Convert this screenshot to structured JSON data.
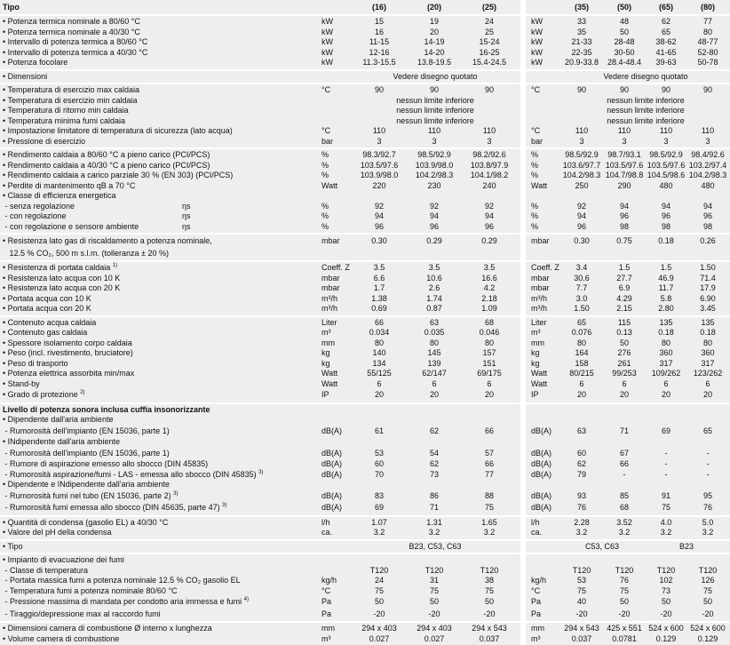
{
  "groups": [
    {
      "rows": [
        {
          "hdr": true,
          "l": "Tipo",
          "v": [
            "(16)",
            "(20)",
            "(25)"
          ],
          "rv": [
            "(35)",
            "(50)",
            "(65)",
            "(80)"
          ]
        }
      ]
    },
    {
      "rows": [
        {
          "l": "• Potenza termica nominale a 80/60 °C",
          "u": "kW",
          "v": [
            "15",
            "19",
            "24"
          ],
          "ru": "kW",
          "rv": [
            "33",
            "48",
            "62",
            "77"
          ]
        },
        {
          "l": "• Potenza termica nominale a 40/30 °C",
          "u": "kW",
          "v": [
            "16",
            "20",
            "25"
          ],
          "ru": "kW",
          "rv": [
            "35",
            "50",
            "65",
            "80"
          ]
        },
        {
          "l": "• Intervallo di potenza termica a 80/60 °C",
          "u": "kW",
          "v": [
            "11-15",
            "14-19",
            "15-24"
          ],
          "ru": "kW",
          "rv": [
            "21-33",
            "28-48",
            "38-62",
            "48-77"
          ]
        },
        {
          "l": "• Intervallo di potenza termica a 40/30 °C",
          "u": "kW",
          "v": [
            "12-16",
            "14-20",
            "16-25"
          ],
          "ru": "kW",
          "rv": [
            "22-35",
            "30-50",
            "41-65",
            "52-80"
          ]
        },
        {
          "l": "• Potenza focolare",
          "u": "kW",
          "v": [
            "11.3-15.5",
            "13.8-19.5",
            "15.4-24.5"
          ],
          "ru": "kW",
          "rv": [
            "20.9-33.8",
            "28.4-48.4",
            "39-63",
            "50-78"
          ]
        }
      ]
    },
    {
      "rows": [
        {
          "l": "• Dimensioni",
          "span": "Vedere disegno quotato",
          "rspan": "Vedere disegno quotato"
        }
      ]
    },
    {
      "rows": [
        {
          "l": "• Temperatura di esercizio max caldaia",
          "u": "°C",
          "v": [
            "90",
            "90",
            "90"
          ],
          "ru": "°C",
          "rv": [
            "90",
            "90",
            "90",
            "90"
          ]
        },
        {
          "l": "• Temperatura di esercizio min caldaia",
          "span": "nessun limite inferiore",
          "rspan": "nessun limite inferiore"
        },
        {
          "l": "• Temperatura di ritorno min caldaia",
          "span": "nessun limite inferiore",
          "rspan": "nessun limite inferiore"
        },
        {
          "l": "• Temperatura minima fumi caldaia",
          "span": "nessun limite inferiore",
          "rspan": "nessun limite inferiore"
        },
        {
          "l": "• Impostazione limitatore di temperatura di sicurezza (lato acqua)",
          "u": "°C",
          "v": [
            "110",
            "110",
            "110"
          ],
          "ru": "°C",
          "rv": [
            "110",
            "110",
            "110",
            "110"
          ]
        },
        {
          "l": "• Pressione di esercizio",
          "u": "bar",
          "v": [
            "3",
            "3",
            "3"
          ],
          "ru": "bar",
          "rv": [
            "3",
            "3",
            "3",
            "3"
          ]
        }
      ]
    },
    {
      "rows": [
        {
          "l": "• Rendimento caldaia a 80/60 °C a pieno carico (PCI/PCS)",
          "u": "%",
          "v": [
            "98.3/92.7",
            "98.5/92.9",
            "98.2/92.6"
          ],
          "ru": "%",
          "rv": [
            "98.5/92.9",
            "98.7/93.1",
            "98.5/92.9",
            "98.4/92.6"
          ]
        },
        {
          "l": "• Rendimento caldaia a 40/30 °C a pieno carico (PCI/PCS)",
          "u": "%",
          "v": [
            "103.5/97.6",
            "103.9/98.0",
            "103.8/97.9"
          ],
          "ru": "%",
          "rv": [
            "103.6/97.7",
            "103.5/97.6",
            "103.5/97.6",
            "103.2/97.4"
          ]
        },
        {
          "l": "• Rendimento caldaia a carico parziale 30 % (EN 303) (PCI/PCS)",
          "u": "%",
          "v": [
            "103.9/98.0",
            "104.2/98.3",
            "104.1/98.2"
          ],
          "ru": "%",
          "rv": [
            "104.2/98.3",
            "104.7/98.8",
            "104.5/98.6",
            "104.2/98.3"
          ]
        },
        {
          "l": "• Perdite di mantenimento qB a 70 °C",
          "u": "Watt",
          "v": [
            "220",
            "230",
            "240"
          ],
          "ru": "Watt",
          "rv": [
            "250",
            "290",
            "480",
            "480"
          ]
        },
        {
          "l": "• Classe di efficienza energetica"
        },
        {
          "l": " - senza regolazione",
          "s": "ηs",
          "u": "%",
          "v": [
            "92",
            "92",
            "92"
          ],
          "ru": "%",
          "rv": [
            "92",
            "94",
            "94",
            "94"
          ]
        },
        {
          "l": " - con regolazione",
          "s": "ηs",
          "u": "%",
          "v": [
            "94",
            "94",
            "94"
          ],
          "ru": "%",
          "rv": [
            "94",
            "96",
            "96",
            "96"
          ]
        },
        {
          "l": " - con regolazione e sensore ambiente",
          "s": "ηs",
          "u": "%",
          "v": [
            "96",
            "96",
            "96"
          ],
          "ru": "%",
          "rv": [
            "96",
            "98",
            "98",
            "98"
          ]
        }
      ]
    },
    {
      "rows": [
        {
          "tall": true,
          "l": "• Resistenza lato gas di riscaldamento a potenza nominale,",
          "u": "mbar",
          "v": [
            "0.30",
            "0.29",
            "0.29"
          ],
          "ru": "mbar",
          "rv": [
            "0.30",
            "0.75",
            "0.18",
            "0.26"
          ]
        },
        {
          "tall": true,
          "l": "   12.5 % CO₂, 500 m s.l.m. (tolleranza ± 20 %)"
        }
      ]
    },
    {
      "rows": [
        {
          "l": "• Resistenza di portata caldaia",
          "n": "1)",
          "u": "Coeff. Z",
          "v": [
            "3.5",
            "3.5",
            "3.5"
          ],
          "ru": "Coeff. Z",
          "rv": [
            "3.4",
            "1.5",
            "1.5",
            "1.50"
          ]
        },
        {
          "l": "• Resistenza lato acqua con 10 K",
          "u": "mbar",
          "v": [
            "6.6",
            "10.6",
            "16.6"
          ],
          "ru": "mbar",
          "rv": [
            "30.6",
            "27.7",
            "46.9",
            "71.4"
          ]
        },
        {
          "l": "• Resistenza lato acqua con 20 K",
          "u": "mbar",
          "v": [
            "1.7",
            "2.6",
            "4.2"
          ],
          "ru": "mbar",
          "rv": [
            "7.7",
            "6.9",
            "11.7",
            "17.9"
          ]
        },
        {
          "l": "• Portata acqua con 10 K",
          "u": "m³/h",
          "v": [
            "1.38",
            "1.74",
            "2.18"
          ],
          "ru": "m³/h",
          "rv": [
            "3.0",
            "4.29",
            "5.8",
            "6.90"
          ]
        },
        {
          "l": "• Portata acqua con 20 K",
          "u": "m³/h",
          "v": [
            "0.69",
            "0.87",
            "1.09"
          ],
          "ru": "m³/h",
          "rv": [
            "1.50",
            "2.15",
            "2.80",
            "3.45"
          ]
        }
      ]
    },
    {
      "rows": [
        {
          "l": "• Contenuto acqua caldaia",
          "u": "Liter",
          "v": [
            "66",
            "63",
            "68"
          ],
          "ru": "Liter",
          "rv": [
            "65",
            "115",
            "135",
            "135"
          ]
        },
        {
          "l": "• Contenuto gas caldaia",
          "u": "m³",
          "v": [
            "0.034",
            "0.035",
            "0.046"
          ],
          "ru": "m³",
          "rv": [
            "0.076",
            "0.13",
            "0.18",
            "0.18"
          ]
        },
        {
          "l": "• Spessore isolamento corpo caldaia",
          "u": "mm",
          "v": [
            "80",
            "80",
            "80"
          ],
          "ru": "mm",
          "rv": [
            "80",
            "50",
            "80",
            "80"
          ]
        },
        {
          "l": "• Peso (incl. rivestimento, bruciatore)",
          "u": "kg",
          "v": [
            "140",
            "145",
            "157"
          ],
          "ru": "kg",
          "rv": [
            "164",
            "276",
            "360",
            "360"
          ]
        },
        {
          "l": "• Peso di trasporto",
          "u": "kg",
          "v": [
            "134",
            "139",
            "151"
          ],
          "ru": "kg",
          "rv": [
            "158",
            "261",
            "317",
            "317"
          ]
        },
        {
          "l": "• Potenza elettrica assorbita min/max",
          "u": "Watt",
          "v": [
            "55/125",
            "62/147",
            "69/175"
          ],
          "ru": "Watt",
          "rv": [
            "80/215",
            "99/253",
            "109/262",
            "123/262"
          ]
        },
        {
          "l": "• Stand-by",
          "u": "Watt",
          "v": [
            "6",
            "6",
            "6"
          ],
          "ru": "Watt",
          "rv": [
            "6",
            "6",
            "6",
            "6"
          ]
        },
        {
          "tall": true,
          "l": "• Grado di protezione",
          "n": "2)",
          "u": "IP",
          "v": [
            "20",
            "20",
            "20"
          ],
          "ru": "IP",
          "rv": [
            "20",
            "20",
            "20",
            "20"
          ]
        }
      ]
    },
    {
      "rows": [
        {
          "bold": true,
          "l": "Livello di potenza sonora inclusa cuffia insonorizzante"
        },
        {
          "l": "• Dipendente dall'aria ambiente"
        },
        {
          "tall": true,
          "l": " - Rumorosità dell'impianto (EN 15036, parte 1)",
          "u": "dB(A)",
          "v": [
            "61",
            "62",
            "66"
          ],
          "ru": "dB(A)",
          "rv": [
            "63",
            "71",
            "69",
            "65"
          ]
        },
        {
          "l": "• INdipendente dall'aria ambiente"
        },
        {
          "tall": true,
          "l": " - Rumorosità dell'impianto (EN 15036, parte 1)",
          "u": "dB(A)",
          "v": [
            "53",
            "54",
            "57"
          ],
          "ru": "dB(A)",
          "rv": [
            "60",
            "67",
            "-",
            "-"
          ]
        },
        {
          "l": " - Rumore di aspirazione emesso allo sbocco (DIN 45835)",
          "u": "dB(A)",
          "v": [
            "60",
            "62",
            "66"
          ],
          "ru": "dB(A)",
          "rv": [
            "62",
            "66",
            "-",
            "-"
          ]
        },
        {
          "l": " - Rumorosità aspirazione/fumi - LAS - emessa allo sbocco (DIN 45835)",
          "n": "3)",
          "u": "dB(A)",
          "v": [
            "70",
            "73",
            "77"
          ],
          "ru": "dB(A)",
          "rv": [
            "79",
            "-",
            "-",
            "-"
          ]
        },
        {
          "l": "• Dipendente e INdipendente dall'aria ambiente"
        },
        {
          "tall": true,
          "l": " - Rumorosità fumi nel tubo (EN 15036, parte 2)",
          "n": "3)",
          "u": "dB(A)",
          "v": [
            "83",
            "86",
            "88"
          ],
          "ru": "dB(A)",
          "rv": [
            "93",
            "85",
            "91",
            "95"
          ]
        },
        {
          "tall": true,
          "l": " - Rumorosità fumi emessa allo sbocco (DIN 45635, parte 47)",
          "n": "3)",
          "u": "dB(A)",
          "v": [
            "69",
            "71",
            "75"
          ],
          "ru": "dB(A)",
          "rv": [
            "76",
            "68",
            "75",
            "76"
          ]
        }
      ]
    },
    {
      "rows": [
        {
          "l": "• Quantità di condensa (gasolio EL) a 40/30 °C",
          "u": "l/h",
          "v": [
            "1.07",
            "1.31",
            "1.65"
          ],
          "ru": "l/h",
          "rv": [
            "2.28",
            "3.52",
            "4.0",
            "5.0"
          ]
        },
        {
          "l": "• Valore del pH della condensa",
          "u": "ca.",
          "v": [
            "3.2",
            "3.2",
            "3.2"
          ],
          "ru": "ca.",
          "rv": [
            "3.2",
            "3.2",
            "3.2",
            "3.2"
          ]
        }
      ]
    },
    {
      "rows": [
        {
          "l": "• Tipo",
          "span": "B23, C53, C63",
          "rsplit": [
            "C53, C63",
            "B23"
          ]
        }
      ]
    },
    {
      "rows": [
        {
          "l": "• Impianto di evacuazione dei fumi"
        },
        {
          "l": " - Classe di temperatura",
          "v": [
            "T120",
            "T120",
            "T120"
          ],
          "rv": [
            "T120",
            "T120",
            "T120",
            "T120"
          ]
        },
        {
          "l": " - Portata massica fumi a potenza nominale 12.5 % CO₂ gasolio EL",
          "u": "kg/h",
          "v": [
            "24",
            "31",
            "38"
          ],
          "ru": "kg/h",
          "rv": [
            "53",
            "76",
            "102",
            "126"
          ]
        },
        {
          "l": " - Temperatura fumi a potenza nominale 80/60 °C",
          "u": "°C",
          "v": [
            "75",
            "75",
            "75"
          ],
          "ru": "°C",
          "rv": [
            "75",
            "75",
            "73",
            "75"
          ]
        },
        {
          "tall": true,
          "l": " - Pressione massima di mandata per condotto aria immessa e fumi",
          "n": "4)",
          "u": "Pa",
          "v": [
            "50",
            "50",
            "50"
          ],
          "ru": "Pa",
          "rv": [
            "40",
            "50",
            "50",
            "50"
          ]
        },
        {
          "tall": true,
          "l": " - Tiraggio/depressione max al raccordo fumi",
          "u": "Pa",
          "v": [
            "-20",
            "-20",
            "-20"
          ],
          "ru": "Pa",
          "rv": [
            "-20",
            "-20",
            "-20",
            "-20"
          ]
        }
      ]
    },
    {
      "rows": [
        {
          "l": "• Dimensioni camera di combustione Ø interno x lunghezza",
          "u": "mm",
          "v": [
            "294 x 403",
            "294 x 403",
            "294 x 543"
          ],
          "ru": "mm",
          "rv": [
            "294 x 543",
            "425 x 551",
            "524 x 600",
            "524 x 600"
          ]
        },
        {
          "l": "• Volume camera di combustione",
          "u": "m³",
          "v": [
            "0.027",
            "0.027",
            "0.037"
          ],
          "ru": "m³",
          "rv": [
            "0.037",
            "0.0781",
            "0.129",
            "0.129"
          ]
        }
      ]
    }
  ]
}
